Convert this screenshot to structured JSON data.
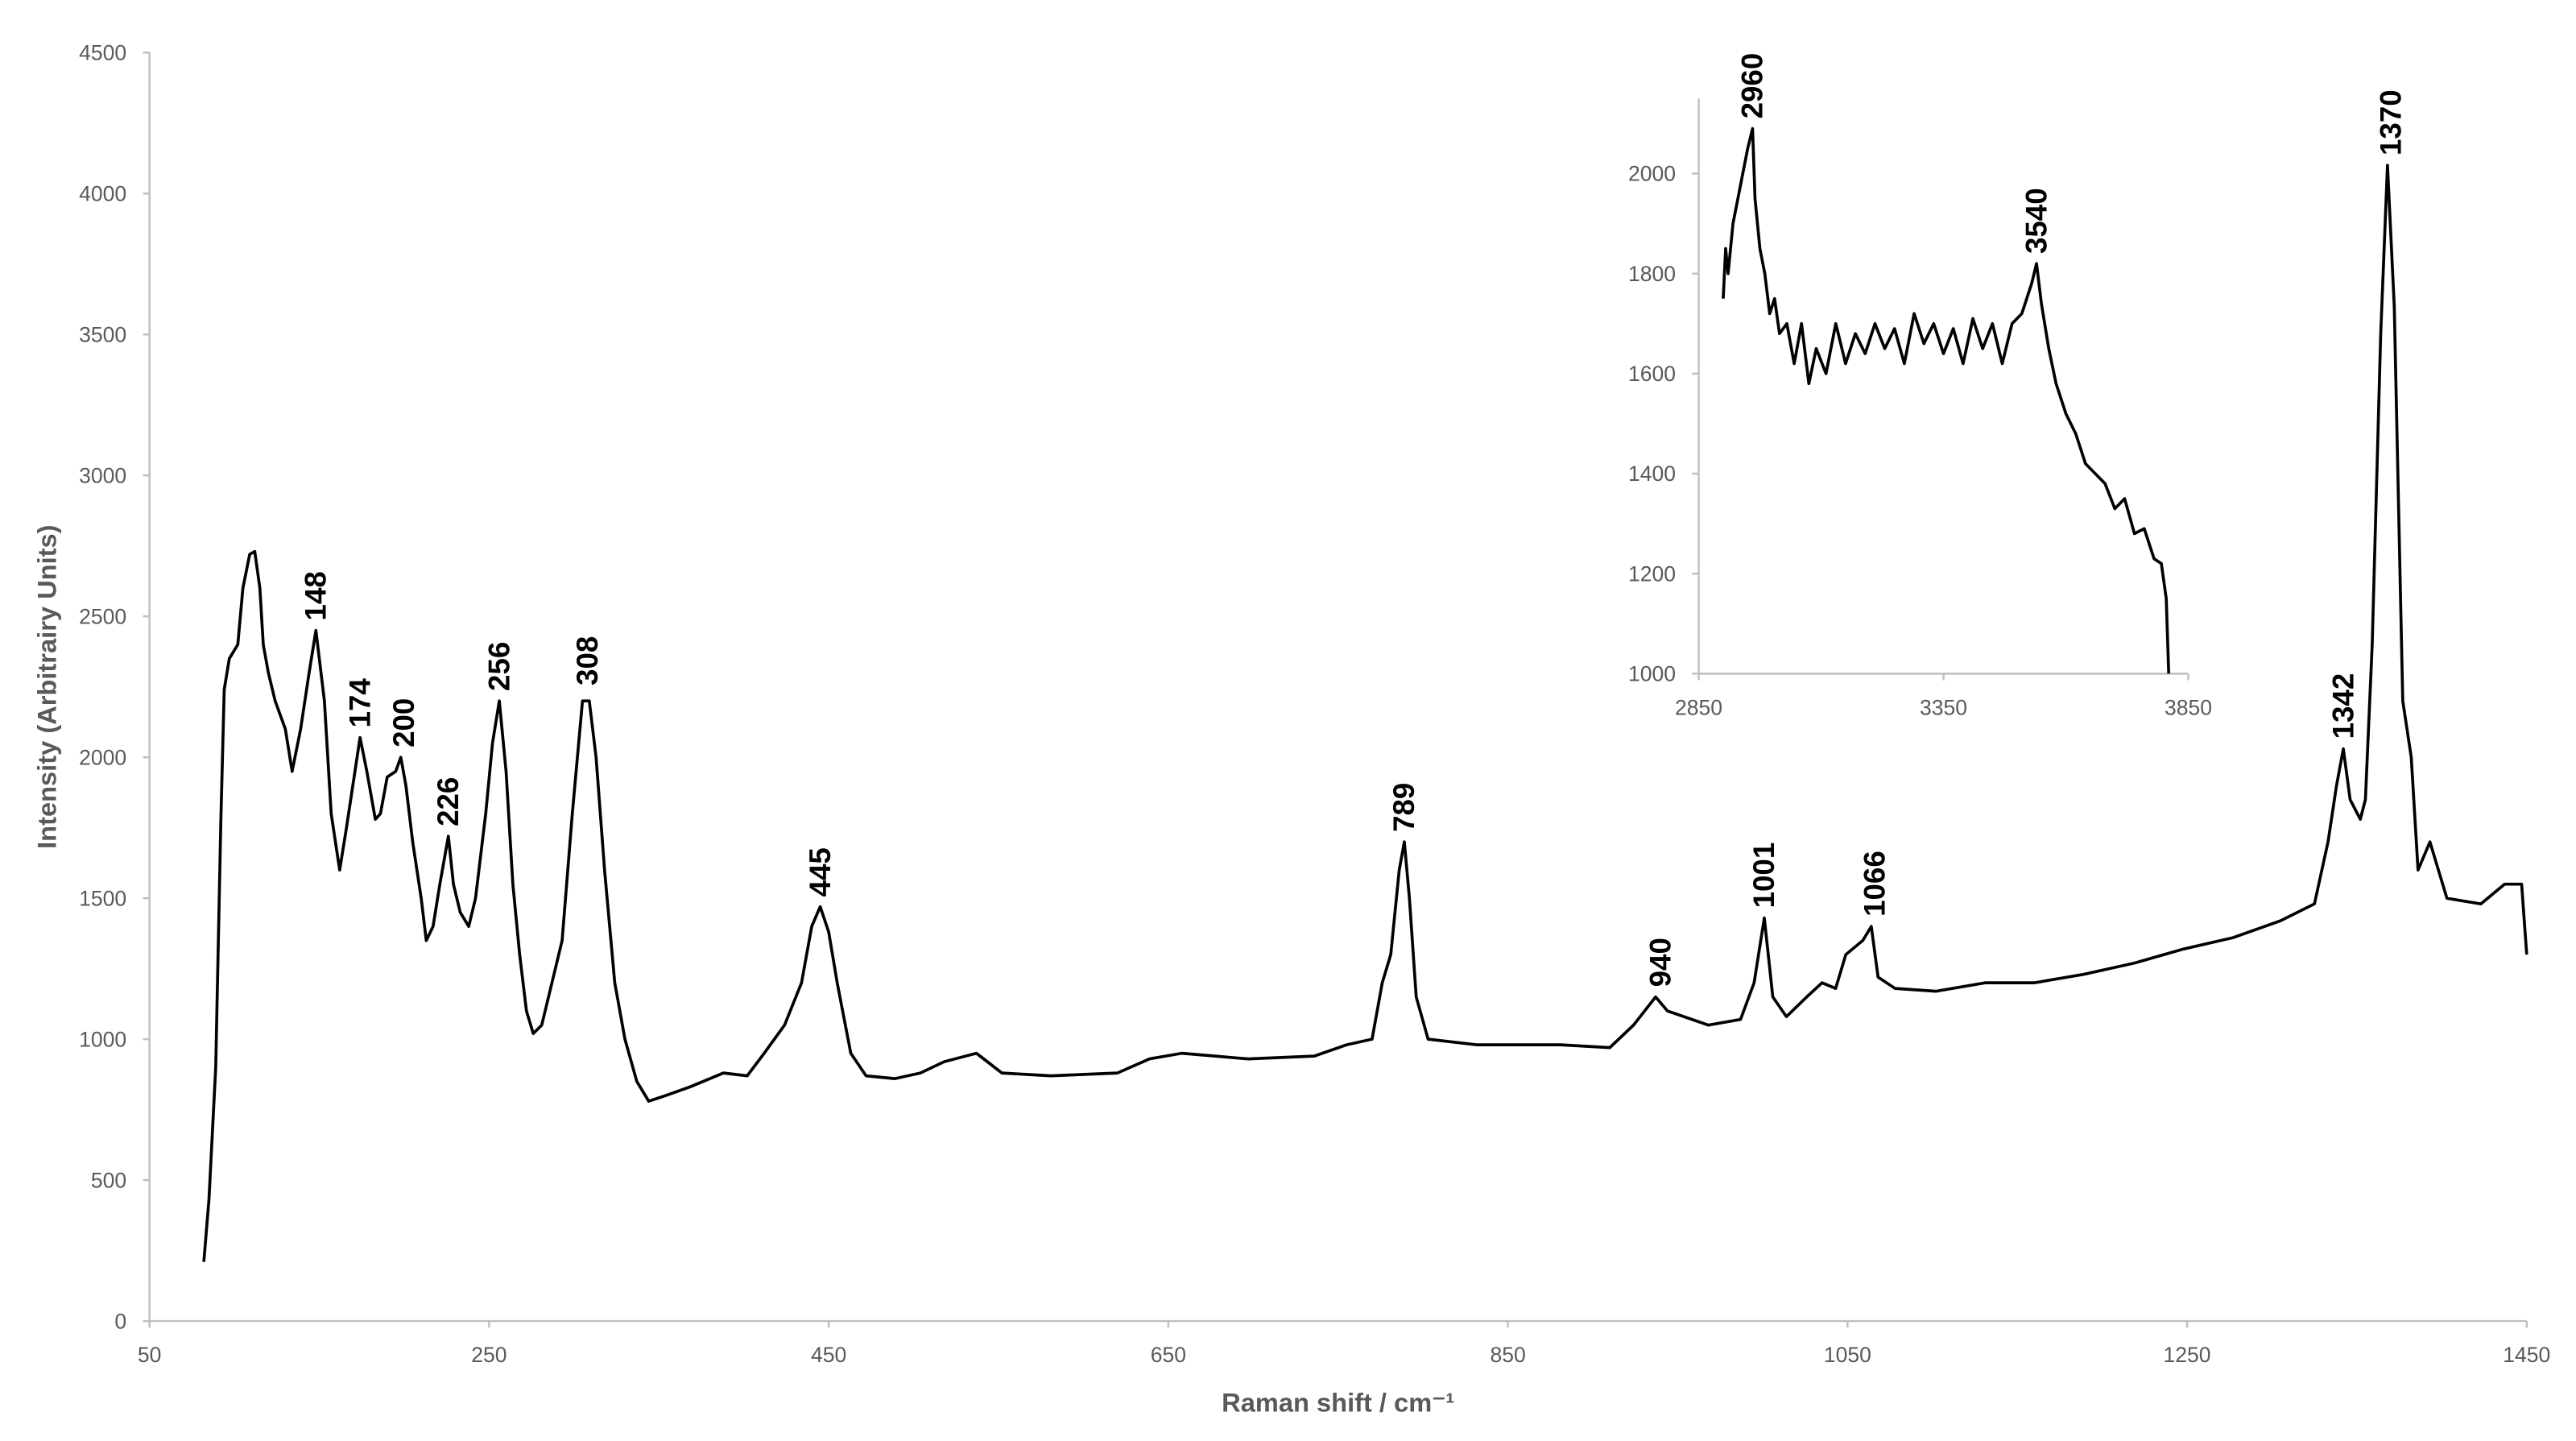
{
  "chart_data": [
    {
      "type": "line",
      "x_label": "Raman shift / cm⁻¹",
      "y_label": "Intensity (Arbitrairy Units)",
      "xlim": [
        50,
        1450
      ],
      "xticks": [
        50,
        250,
        450,
        650,
        850,
        1050,
        1250,
        1450
      ],
      "ylim": [
        0,
        4500
      ],
      "yticks": [
        0,
        500,
        1000,
        1500,
        2000,
        2500,
        3000,
        3500,
        4000,
        4500
      ],
      "series": [
        {
          "color": "#000000",
          "x": [
            82,
            85,
            89,
            92,
            94,
            97,
            102,
            105,
            109,
            112,
            115,
            117,
            120,
            124,
            130,
            134,
            139,
            144,
            148,
            153,
            157,
            162,
            166,
            171,
            174,
            178,
            183,
            186,
            190,
            195,
            198,
            201,
            205,
            210,
            213,
            217,
            221,
            226,
            229,
            233,
            238,
            242,
            248,
            252,
            256,
            260,
            264,
            268,
            272,
            276,
            281,
            287,
            293,
            299,
            305,
            309,
            313,
            318,
            324,
            330,
            337,
            344,
            354,
            368,
            388,
            402,
            412,
            424,
            434,
            440,
            445,
            450,
            455,
            463,
            472,
            489,
            504,
            518,
            537,
            552,
            581,
            620,
            639,
            658,
            697,
            736,
            755,
            770,
            776,
            781,
            786,
            789,
            792,
            796,
            803,
            832,
            881,
            910,
            924,
            937,
            944,
            968,
            987,
            995,
            1001,
            1006,
            1014,
            1026,
            1035,
            1043,
            1049,
            1059,
            1064,
            1068,
            1078,
            1102,
            1131,
            1160,
            1189,
            1219,
            1248,
            1277,
            1305,
            1325,
            1333,
            1338,
            1342,
            1346,
            1352,
            1355,
            1359,
            1364,
            1368,
            1372,
            1377,
            1382,
            1386,
            1393,
            1403,
            1423,
            1437,
            1447,
            1450
          ],
          "values": [
            210,
            430,
            900,
            1770,
            2240,
            2350,
            2400,
            2600,
            2720,
            2730,
            2600,
            2400,
            2300,
            2200,
            2100,
            1950,
            2100,
            2300,
            2450,
            2200,
            1800,
            1600,
            1750,
            1950,
            2070,
            1950,
            1780,
            1800,
            1930,
            1950,
            2000,
            1900,
            1700,
            1500,
            1350,
            1400,
            1550,
            1720,
            1550,
            1450,
            1400,
            1500,
            1800,
            2050,
            2200,
            1950,
            1550,
            1300,
            1100,
            1020,
            1050,
            1200,
            1350,
            1800,
            2200,
            2200,
            2000,
            1600,
            1200,
            1000,
            850,
            780,
            800,
            830,
            880,
            870,
            950,
            1050,
            1200,
            1400,
            1470,
            1380,
            1200,
            950,
            870,
            860,
            880,
            920,
            950,
            880,
            870,
            880,
            930,
            950,
            930,
            940,
            980,
            1000,
            1200,
            1300,
            1600,
            1700,
            1500,
            1150,
            1000,
            980,
            980,
            970,
            1050,
            1150,
            1100,
            1050,
            1070,
            1200,
            1430,
            1150,
            1080,
            1150,
            1200,
            1180,
            1300,
            1350,
            1400,
            1220,
            1180,
            1170,
            1200,
            1200,
            1230,
            1270,
            1320,
            1360,
            1420,
            1480,
            1700,
            1900,
            2030,
            1850,
            1780,
            1850,
            2400,
            3500,
            4100,
            3600,
            2200,
            2000,
            1600,
            1700,
            1500,
            1480,
            1550,
            1550,
            1300
          ]
        }
      ],
      "annotations": [
        {
          "x": 148,
          "y": 2450
        },
        {
          "x": 174,
          "y": 2070
        },
        {
          "x": 200,
          "y": 2000
        },
        {
          "x": 226,
          "y": 1720
        },
        {
          "x": 256,
          "y": 2200
        },
        {
          "x": 308,
          "y": 2220
        },
        {
          "x": 445,
          "y": 1470
        },
        {
          "x": 789,
          "y": 1700
        },
        {
          "x": 940,
          "y": 1150
        },
        {
          "x": 1001,
          "y": 1430
        },
        {
          "x": 1066,
          "y": 1400
        },
        {
          "x": 1342,
          "y": 2030
        },
        {
          "x": 1370,
          "y": 4100
        }
      ]
    },
    {
      "type": "line",
      "xlim": [
        2850,
        3850
      ],
      "xticks": [
        2850,
        3350,
        3850
      ],
      "ylim": [
        1000,
        2150
      ],
      "yticks": [
        1000,
        1200,
        1400,
        1600,
        1800,
        2000
      ],
      "series": [
        {
          "color": "#000000",
          "x": [
            2900,
            2905,
            2910,
            2920,
            2930,
            2940,
            2950,
            2960,
            2965,
            2975,
            2985,
            2995,
            3005,
            3015,
            3030,
            3045,
            3060,
            3075,
            3090,
            3110,
            3130,
            3150,
            3170,
            3190,
            3210,
            3230,
            3250,
            3270,
            3290,
            3310,
            3330,
            3350,
            3370,
            3390,
            3410,
            3430,
            3450,
            3470,
            3490,
            3510,
            3530,
            3540,
            3550,
            3565,
            3580,
            3600,
            3620,
            3640,
            3660,
            3680,
            3700,
            3720,
            3740,
            3760,
            3780,
            3795,
            3805,
            3810
          ],
          "values": [
            1750,
            1850,
            1800,
            1900,
            1950,
            2000,
            2050,
            2090,
            1950,
            1850,
            1800,
            1720,
            1750,
            1680,
            1700,
            1620,
            1700,
            1580,
            1650,
            1600,
            1700,
            1620,
            1680,
            1640,
            1700,
            1650,
            1690,
            1620,
            1720,
            1660,
            1700,
            1640,
            1690,
            1620,
            1710,
            1650,
            1700,
            1620,
            1700,
            1720,
            1780,
            1820,
            1740,
            1650,
            1580,
            1520,
            1480,
            1420,
            1400,
            1380,
            1330,
            1350,
            1280,
            1290,
            1230,
            1220,
            1150,
            1000
          ]
        }
      ],
      "annotations": [
        {
          "x": 2960,
          "y": 2090
        },
        {
          "x": 3540,
          "y": 1820
        }
      ]
    }
  ]
}
